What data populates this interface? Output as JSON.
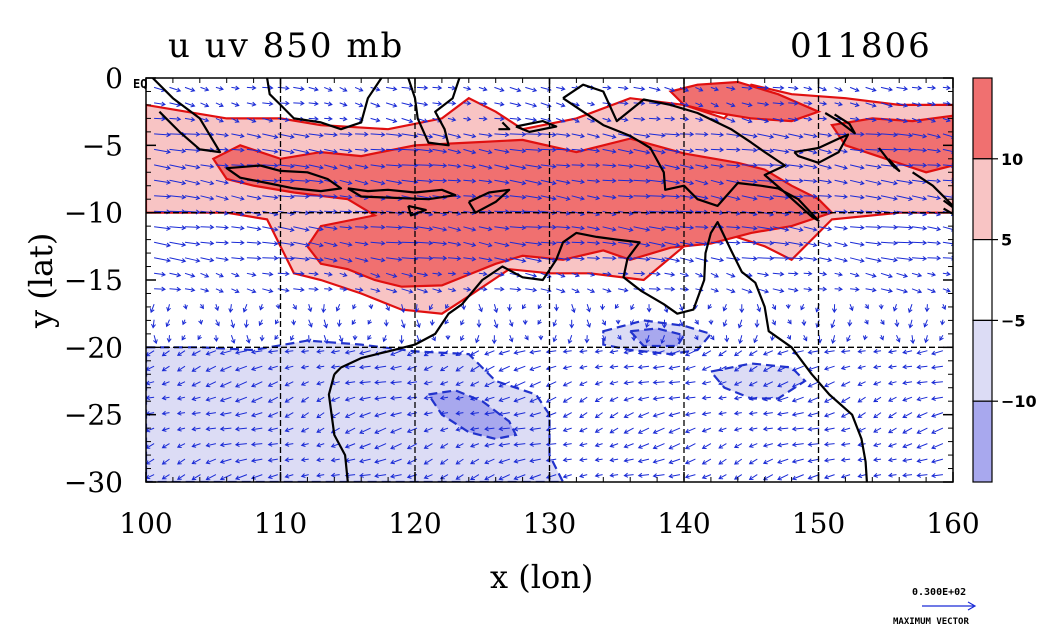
{
  "chart_data": {
    "type": "contour-vector-map",
    "title_left": "u uv 850 mb",
    "title_right": "011806",
    "xlabel": "x (lon)",
    "ylabel": "y (lat)",
    "xlim": [
      100,
      160
    ],
    "ylim": [
      -30,
      0
    ],
    "x_ticks": [
      100,
      110,
      120,
      130,
      140,
      150,
      160
    ],
    "x_tick_labels": [
      "100",
      "110",
      "120",
      "130",
      "140",
      "150",
      "160"
    ],
    "y_ticks": [
      0,
      -5,
      -10,
      -15,
      -20,
      -25,
      -30
    ],
    "y_tick_labels": [
      "0",
      "−5",
      "−10",
      "−15",
      "−20",
      "−25",
      "−30"
    ],
    "y_zero_suffix": "EQ",
    "gridlines_x": [
      110,
      120,
      130,
      140,
      150
    ],
    "gridlines_y": [
      -10,
      -20
    ],
    "colorbar": {
      "levels": [
        -10,
        -5,
        5,
        10
      ],
      "labels": [
        "10",
        "5",
        "−5",
        "−10"
      ],
      "colors": [
        "#f07070",
        "#f8c4c4",
        "#ffffff",
        "#dcdcf5",
        "#a8a8ee"
      ]
    },
    "max_vector_value": "0.300E+02",
    "max_vector_label": "MAXIMUM VECTOR",
    "contour_regions": [
      {
        "level": "u>5",
        "color": "#f8c4c4",
        "lonlat": [
          [
            100,
            -2
          ],
          [
            103,
            -2.5
          ],
          [
            106,
            -3
          ],
          [
            110,
            -3
          ],
          [
            113,
            -3.5
          ],
          [
            118,
            -3.8
          ],
          [
            122,
            -3
          ],
          [
            124,
            -1.5
          ],
          [
            126,
            -2.5
          ],
          [
            128,
            -3.8
          ],
          [
            132,
            -3
          ],
          [
            136,
            -1.5
          ],
          [
            140,
            -2
          ],
          [
            143,
            -3
          ],
          [
            145,
            -0.5
          ],
          [
            148,
            -1.2
          ],
          [
            152,
            -1.5
          ],
          [
            156,
            -2
          ],
          [
            160,
            -2
          ],
          [
            160,
            -10
          ],
          [
            156,
            -10
          ],
          [
            151,
            -10.5
          ],
          [
            150,
            -11.5
          ],
          [
            148,
            -13.5
          ],
          [
            146,
            -12.5
          ],
          [
            143,
            -11.5
          ],
          [
            140,
            -12.5
          ],
          [
            137,
            -15
          ],
          [
            133,
            -14.5
          ],
          [
            130,
            -14.5
          ],
          [
            127,
            -14.2
          ],
          [
            124,
            -16.2
          ],
          [
            122,
            -17.5
          ],
          [
            119,
            -17.2
          ],
          [
            116,
            -16
          ],
          [
            113,
            -15
          ],
          [
            111,
            -14.5
          ],
          [
            109,
            -10.5
          ],
          [
            106,
            -10
          ],
          [
            103,
            -10
          ],
          [
            100,
            -10
          ]
        ]
      },
      {
        "level": "u>10",
        "color": "#f07070",
        "lonlat": [
          [
            107,
            -5
          ],
          [
            110,
            -6
          ],
          [
            113,
            -5.5
          ],
          [
            116,
            -5.8
          ],
          [
            120,
            -5
          ],
          [
            124,
            -4.8
          ],
          [
            128,
            -4.6
          ],
          [
            132,
            -5.5
          ],
          [
            136,
            -4.5
          ],
          [
            140,
            -5.6
          ],
          [
            144,
            -6.3
          ],
          [
            146,
            -6.8
          ],
          [
            148,
            -8
          ],
          [
            150,
            -9
          ],
          [
            151,
            -10
          ],
          [
            148,
            -11
          ],
          [
            145,
            -11.5
          ],
          [
            142,
            -12.3
          ],
          [
            139,
            -12.6
          ],
          [
            136,
            -13.5
          ],
          [
            134,
            -12.8
          ],
          [
            131,
            -13.5
          ],
          [
            128,
            -13.2
          ],
          [
            126,
            -13.8
          ],
          [
            124,
            -14.6
          ],
          [
            122,
            -15.4
          ],
          [
            119,
            -15.5
          ],
          [
            117,
            -15
          ],
          [
            115,
            -14.2
          ],
          [
            113,
            -13.8
          ],
          [
            112,
            -12.5
          ],
          [
            113,
            -11
          ],
          [
            117,
            -10.2
          ],
          [
            115,
            -9
          ],
          [
            111,
            -8.5
          ],
          [
            108,
            -8
          ],
          [
            106,
            -7.5
          ],
          [
            105,
            -6
          ]
        ]
      },
      {
        "level": "u>10",
        "color": "#f07070",
        "lonlat": [
          [
            139,
            -1
          ],
          [
            141,
            -0.5
          ],
          [
            144,
            -0.3
          ],
          [
            147,
            -1.2
          ],
          [
            150,
            -2.5
          ],
          [
            148,
            -3.2
          ],
          [
            145,
            -3
          ],
          [
            142,
            -2.5
          ],
          [
            140,
            -2
          ]
        ]
      },
      {
        "level": "u>10",
        "color": "#f07070",
        "lonlat": [
          [
            151,
            -3.5
          ],
          [
            154,
            -3
          ],
          [
            157,
            -3.2
          ],
          [
            160,
            -2.8
          ],
          [
            160,
            -6.5
          ],
          [
            158,
            -7
          ],
          [
            155,
            -6
          ],
          [
            152,
            -5
          ]
        ]
      },
      {
        "level": "u<-5",
        "color": "#dcdcf5",
        "lonlat": [
          [
            100,
            -20
          ],
          [
            104,
            -20
          ],
          [
            108,
            -20.2
          ],
          [
            112,
            -19.5
          ],
          [
            116,
            -19.8
          ],
          [
            120,
            -20.3
          ],
          [
            124,
            -20.5
          ],
          [
            126,
            -22.5
          ],
          [
            129,
            -23.5
          ],
          [
            130,
            -25
          ],
          [
            130,
            -28
          ],
          [
            131,
            -30
          ],
          [
            100,
            -30
          ]
        ]
      },
      {
        "level": "u<-5",
        "color": "#dcdcf5",
        "lonlat": [
          [
            134,
            -18.8
          ],
          [
            137,
            -18
          ],
          [
            140,
            -18.4
          ],
          [
            142,
            -19
          ],
          [
            141,
            -20.2
          ],
          [
            139,
            -20.5
          ],
          [
            136,
            -20.2
          ],
          [
            134,
            -19.8
          ]
        ]
      },
      {
        "level": "u<-5",
        "color": "#dcdcf5",
        "lonlat": [
          [
            142,
            -21.8
          ],
          [
            145,
            -21.2
          ],
          [
            148,
            -21.5
          ],
          [
            149,
            -22.5
          ],
          [
            147,
            -23.8
          ],
          [
            145,
            -23.8
          ],
          [
            143,
            -23
          ]
        ]
      },
      {
        "level": "u<-10",
        "color": "#a8a8ee",
        "lonlat": [
          [
            121,
            -23.5
          ],
          [
            123,
            -23.2
          ],
          [
            125,
            -24
          ],
          [
            127,
            -25.5
          ],
          [
            127.5,
            -26.5
          ],
          [
            126,
            -26.8
          ],
          [
            124,
            -26.3
          ],
          [
            122,
            -25
          ]
        ]
      },
      {
        "level": "u<-10",
        "color": "#a8a8ee",
        "lonlat": [
          [
            136,
            -18.8
          ],
          [
            138,
            -18.6
          ],
          [
            140,
            -19.1
          ],
          [
            139.5,
            -19.9
          ],
          [
            137,
            -19.9
          ]
        ]
      }
    ],
    "coastlines": [
      [
        [
          114,
          -22
        ],
        [
          114.5,
          -21.5
        ],
        [
          116,
          -20.8
        ],
        [
          118,
          -20.3
        ],
        [
          120,
          -19.8
        ],
        [
          121.5,
          -19
        ],
        [
          122.5,
          -17.5
        ],
        [
          123.5,
          -16.8
        ],
        [
          125,
          -15
        ],
        [
          126.5,
          -14
        ],
        [
          128,
          -14.8
        ],
        [
          129.5,
          -15
        ],
        [
          130.5,
          -13.5
        ],
        [
          131,
          -12.2
        ],
        [
          132,
          -11.5
        ],
        [
          133.5,
          -11.8
        ],
        [
          135,
          -12
        ],
        [
          136.7,
          -12.2
        ],
        [
          135.8,
          -13.4
        ],
        [
          135.5,
          -14.8
        ],
        [
          136.8,
          -15.8
        ],
        [
          138.5,
          -16.8
        ],
        [
          139.5,
          -17.5
        ],
        [
          140.7,
          -17.2
        ],
        [
          141.5,
          -15
        ],
        [
          141.6,
          -13
        ],
        [
          142,
          -11.5
        ],
        [
          142.5,
          -10.7
        ],
        [
          143.5,
          -12.8
        ],
        [
          144.3,
          -14.4
        ],
        [
          145.3,
          -15.2
        ],
        [
          146,
          -17
        ],
        [
          146.3,
          -18.8
        ],
        [
          148,
          -20
        ],
        [
          149.5,
          -22
        ],
        [
          150.8,
          -23.5
        ],
        [
          152.5,
          -25
        ],
        [
          153.2,
          -26.8
        ],
        [
          153.5,
          -28.5
        ],
        [
          153.6,
          -30
        ]
      ],
      [
        [
          114,
          -22
        ],
        [
          113.6,
          -23.5
        ],
        [
          113.8,
          -25
        ],
        [
          114,
          -26.5
        ],
        [
          114.8,
          -28
        ],
        [
          115,
          -30
        ]
      ],
      [
        [
          108.5,
          -6.5
        ],
        [
          110,
          -6.9
        ],
        [
          112,
          -7
        ],
        [
          113.5,
          -7.5
        ],
        [
          114.5,
          -8.2
        ],
        [
          113,
          -8.4
        ],
        [
          111,
          -8.2
        ],
        [
          109,
          -7.8
        ],
        [
          107,
          -7.4
        ],
        [
          106,
          -6.7
        ],
        [
          108.5,
          -6.5
        ]
      ],
      [
        [
          115,
          -8.2
        ],
        [
          116.5,
          -8.4
        ],
        [
          118,
          -8.3
        ],
        [
          120,
          -8.5
        ],
        [
          122,
          -8.3
        ],
        [
          123,
          -8.7
        ],
        [
          121,
          -9
        ],
        [
          118.5,
          -8.9
        ],
        [
          116,
          -8.8
        ],
        [
          115,
          -8.2
        ]
      ],
      [
        [
          119.5,
          -9.5
        ],
        [
          120.8,
          -9.8
        ],
        [
          119.7,
          -10.2
        ],
        [
          119.5,
          -9.5
        ]
      ],
      [
        [
          124,
          -9.2
        ],
        [
          125.5,
          -8.5
        ],
        [
          127,
          -8.3
        ],
        [
          126,
          -9.2
        ],
        [
          124.5,
          -10
        ],
        [
          124,
          -9.2
        ]
      ],
      [
        [
          100.5,
          0
        ],
        [
          102,
          -1.5
        ],
        [
          104,
          -3
        ],
        [
          105.5,
          -5.5
        ],
        [
          104,
          -5.3
        ],
        [
          102.5,
          -4
        ],
        [
          101,
          -2.5
        ]
      ],
      [
        [
          109,
          0
        ],
        [
          109.2,
          -1.2
        ],
        [
          110,
          -2
        ],
        [
          111,
          -3
        ],
        [
          113,
          -3.3
        ],
        [
          114.5,
          -3.8
        ],
        [
          116,
          -3.3
        ],
        [
          116.5,
          -1.5
        ],
        [
          117.5,
          0
        ]
      ],
      [
        [
          119.5,
          0
        ],
        [
          120,
          -1.5
        ],
        [
          120.2,
          -3
        ],
        [
          121,
          -4.8
        ],
        [
          122.5,
          -5
        ],
        [
          122.2,
          -3.8
        ],
        [
          121.5,
          -2.5
        ],
        [
          122.8,
          -1.5
        ],
        [
          123.3,
          0
        ]
      ],
      [
        [
          127.5,
          -3.6
        ],
        [
          129.5,
          -3.2
        ],
        [
          130.5,
          -3.6
        ],
        [
          128.5,
          -4
        ],
        [
          127.5,
          -3.6
        ]
      ],
      [
        [
          126.5,
          -3.3
        ],
        [
          127,
          -3.8
        ],
        [
          126.2,
          -3.8
        ]
      ],
      [
        [
          131,
          -1.5
        ],
        [
          132.5,
          -2.5
        ],
        [
          134,
          -3.5
        ],
        [
          136,
          -4.3
        ],
        [
          137.5,
          -5.2
        ],
        [
          138.5,
          -7
        ],
        [
          138.6,
          -8.3
        ],
        [
          140,
          -8
        ],
        [
          141,
          -9
        ],
        [
          142.5,
          -9.5
        ],
        [
          144,
          -7.8
        ],
        [
          145.7,
          -8
        ],
        [
          147,
          -8.2
        ],
        [
          148.5,
          -9
        ],
        [
          150,
          -10.6
        ],
        [
          149.5,
          -10.3
        ],
        [
          147.5,
          -8.5
        ],
        [
          146,
          -7.2
        ],
        [
          147.5,
          -6.5
        ],
        [
          146,
          -5.5
        ],
        [
          145,
          -4.8
        ],
        [
          143.5,
          -3.8
        ],
        [
          141,
          -2.6
        ],
        [
          139,
          -2
        ],
        [
          137,
          -1.6
        ],
        [
          135,
          -3.2
        ],
        [
          134,
          -1
        ],
        [
          132.5,
          -0.5
        ],
        [
          131,
          -1.5
        ]
      ],
      [
        [
          148.2,
          -5.5
        ],
        [
          150,
          -5.2
        ],
        [
          151.5,
          -4.5
        ],
        [
          152.2,
          -4.2
        ],
        [
          151.5,
          -5.5
        ],
        [
          150,
          -6.3
        ],
        [
          148.5,
          -5.8
        ],
        [
          148.2,
          -5.5
        ]
      ],
      [
        [
          150.5,
          -2.6
        ],
        [
          151.5,
          -3.2
        ],
        [
          152.7,
          -4.1
        ],
        [
          152.3,
          -3.4
        ],
        [
          151.2,
          -2.7
        ]
      ],
      [
        [
          154.5,
          -5.2
        ],
        [
          155.5,
          -6.5
        ],
        [
          156,
          -6.9
        ],
        [
          155.2,
          -6
        ]
      ],
      [
        [
          157,
          -7
        ],
        [
          158.5,
          -8
        ],
        [
          159.5,
          -9
        ],
        [
          160,
          -9.5
        ]
      ],
      [
        [
          159.3,
          -9.1
        ],
        [
          160,
          -9.6
        ],
        [
          160,
          -10.1
        ],
        [
          159.3,
          -9.7
        ]
      ]
    ]
  }
}
